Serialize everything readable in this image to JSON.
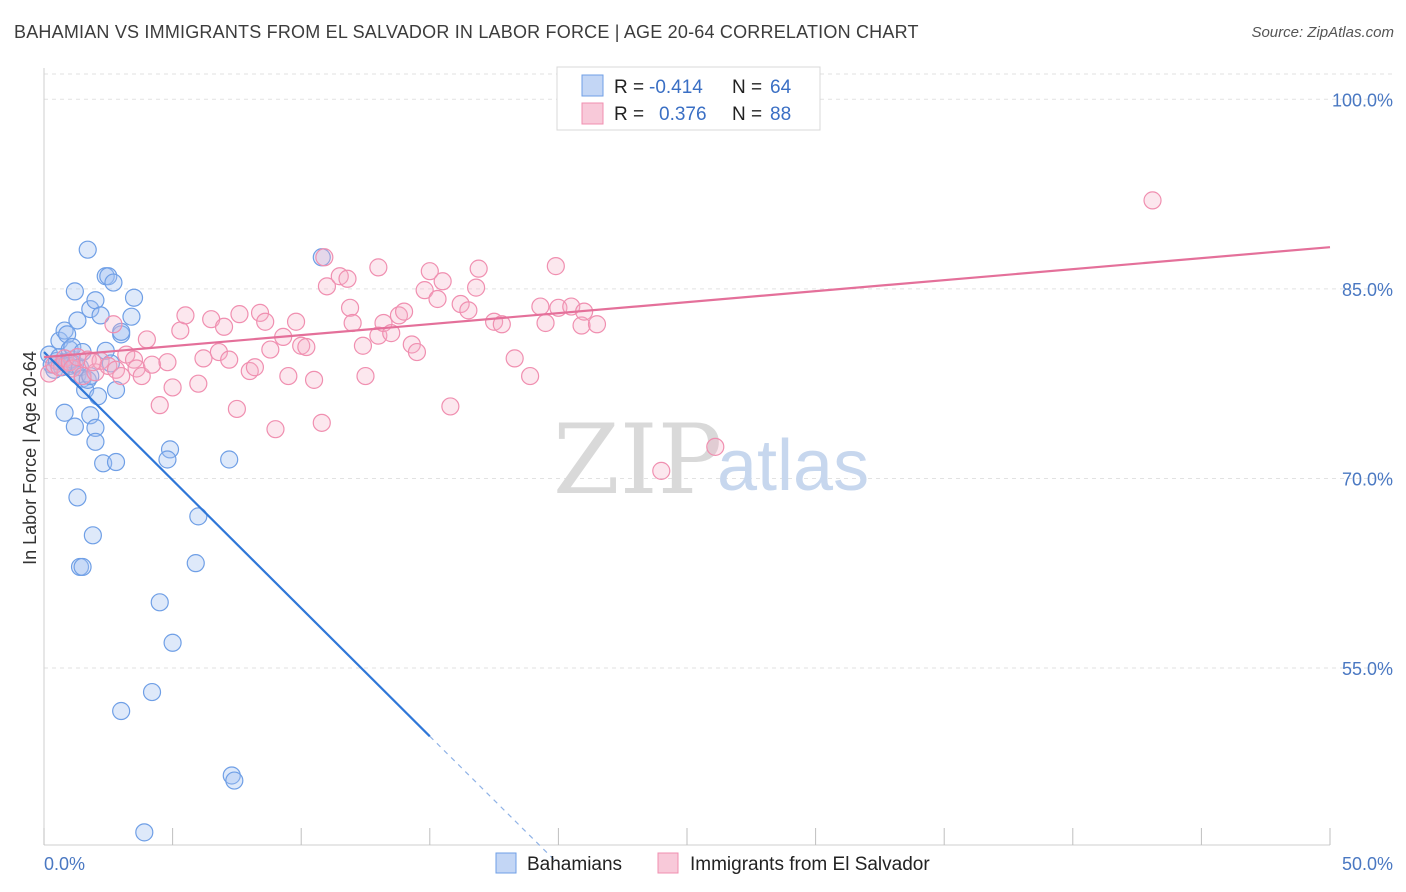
{
  "title": "BAHAMIAN VS IMMIGRANTS FROM EL SALVADOR IN LABOR FORCE | AGE 20-64 CORRELATION CHART",
  "source": "Source: ZipAtlas.com",
  "watermark": {
    "zip": "ZIP",
    "atlas": "atlas"
  },
  "legend": {
    "rows": [
      {
        "r_label": "R =",
        "r_value": "-0.414",
        "n_label": "N =",
        "n_value": "64",
        "color": "#6f9fe6"
      },
      {
        "r_label": "R =",
        "r_value": "0.376",
        "n_label": "N =",
        "n_value": "88",
        "color": "#f08fb0"
      }
    ]
  },
  "bottom_legend": [
    "Bahamians",
    "Immigrants from El Salvador"
  ],
  "chart_data": {
    "type": "scatter",
    "title": "BAHAMIAN VS IMMIGRANTS FROM EL SALVADOR IN LABOR FORCE | AGE 20-64 CORRELATION CHART",
    "xlabel": "",
    "ylabel": "In Labor Force | Age 20-64",
    "xlim": [
      0,
      50
    ],
    "ylim": [
      41,
      102
    ],
    "x_tick_labels": [
      "0.0%",
      "50.0%"
    ],
    "y_ticks": [
      100,
      85,
      70,
      55
    ],
    "y_tick_labels": [
      "100.0%",
      "85.0%",
      "70.0%",
      "55.0%"
    ],
    "grid": "horizontal dashed",
    "legend_placement": "top-center",
    "series": [
      {
        "name": "Bahamians",
        "color": "#6f9fe6",
        "points": [
          [
            0.2,
            79.8
          ],
          [
            0.3,
            79.0
          ],
          [
            0.4,
            78.6
          ],
          [
            0.5,
            79.3
          ],
          [
            0.6,
            79.6
          ],
          [
            0.7,
            78.8
          ],
          [
            0.8,
            79.2
          ],
          [
            0.9,
            79.1
          ],
          [
            1.0,
            78.9
          ],
          [
            1.1,
            79.4
          ],
          [
            0.6,
            80.9
          ],
          [
            0.8,
            81.7
          ],
          [
            0.9,
            81.4
          ],
          [
            1.0,
            80.2
          ],
          [
            1.1,
            80.4
          ],
          [
            1.2,
            79.0
          ],
          [
            1.3,
            78.2
          ],
          [
            1.4,
            78.8
          ],
          [
            1.5,
            77.9
          ],
          [
            1.6,
            77.0
          ],
          [
            1.7,
            77.8
          ],
          [
            1.8,
            78.1
          ],
          [
            1.2,
            84.8
          ],
          [
            1.3,
            82.5
          ],
          [
            1.5,
            80.0
          ],
          [
            1.7,
            88.1
          ],
          [
            1.8,
            83.4
          ],
          [
            2.0,
            84.1
          ],
          [
            2.2,
            82.9
          ],
          [
            2.4,
            86.0
          ],
          [
            2.5,
            86.0
          ],
          [
            2.7,
            85.5
          ],
          [
            2.4,
            80.1
          ],
          [
            2.6,
            79.1
          ],
          [
            2.1,
            76.5
          ],
          [
            3.0,
            81.4
          ],
          [
            3.4,
            82.8
          ],
          [
            3.5,
            84.3
          ],
          [
            3.0,
            81.6
          ],
          [
            2.8,
            77.0
          ],
          [
            0.8,
            75.2
          ],
          [
            1.2,
            74.1
          ],
          [
            1.8,
            75.0
          ],
          [
            2.0,
            74.0
          ],
          [
            2.0,
            72.9
          ],
          [
            2.3,
            71.2
          ],
          [
            2.8,
            71.3
          ],
          [
            4.9,
            72.3
          ],
          [
            4.8,
            71.5
          ],
          [
            7.2,
            71.5
          ],
          [
            1.3,
            68.5
          ],
          [
            1.9,
            65.5
          ],
          [
            1.4,
            63.0
          ],
          [
            1.5,
            63.0
          ],
          [
            6.0,
            67.0
          ],
          [
            5.9,
            63.3
          ],
          [
            4.5,
            60.2
          ],
          [
            5.0,
            57.0
          ],
          [
            4.2,
            53.1
          ],
          [
            3.0,
            51.6
          ],
          [
            7.3,
            46.5
          ],
          [
            7.4,
            46.1
          ],
          [
            3.9,
            42.0
          ],
          [
            10.8,
            87.5
          ]
        ],
        "trend": {
          "x": [
            0,
            15
          ],
          "y": [
            80.0,
            49.6
          ],
          "dashed_extension": {
            "x": [
              15,
              20
            ],
            "y": [
              49.6,
              39.5
            ]
          }
        }
      },
      {
        "name": "Immigrants from El Salvador",
        "color": "#f08fb0",
        "points": [
          [
            0.2,
            78.3
          ],
          [
            0.4,
            79.0
          ],
          [
            0.6,
            78.8
          ],
          [
            0.8,
            79.5
          ],
          [
            1.0,
            79.2
          ],
          [
            1.1,
            78.7
          ],
          [
            1.3,
            79.6
          ],
          [
            1.5,
            78.1
          ],
          [
            1.7,
            79.4
          ],
          [
            2.0,
            78.4
          ],
          [
            2.2,
            79.3
          ],
          [
            2.5,
            78.9
          ],
          [
            2.7,
            82.2
          ],
          [
            2.8,
            78.6
          ],
          [
            3.0,
            78.1
          ],
          [
            3.2,
            79.8
          ],
          [
            3.5,
            79.4
          ],
          [
            3.6,
            78.7
          ],
          [
            3.8,
            78.1
          ],
          [
            4.0,
            81.0
          ],
          [
            4.2,
            79.0
          ],
          [
            4.5,
            75.8
          ],
          [
            4.8,
            79.2
          ],
          [
            5.0,
            77.2
          ],
          [
            5.3,
            81.7
          ],
          [
            5.5,
            82.9
          ],
          [
            6.0,
            77.5
          ],
          [
            6.2,
            79.5
          ],
          [
            6.5,
            82.6
          ],
          [
            6.8,
            80.0
          ],
          [
            7.0,
            82.0
          ],
          [
            7.2,
            79.4
          ],
          [
            7.5,
            75.5
          ],
          [
            7.6,
            83.0
          ],
          [
            8.0,
            78.5
          ],
          [
            8.2,
            78.8
          ],
          [
            8.4,
            83.1
          ],
          [
            8.6,
            82.4
          ],
          [
            8.8,
            80.2
          ],
          [
            9.0,
            73.9
          ],
          [
            9.3,
            81.2
          ],
          [
            9.5,
            78.1
          ],
          [
            9.8,
            82.4
          ],
          [
            10.0,
            80.5
          ],
          [
            10.2,
            80.4
          ],
          [
            10.5,
            77.8
          ],
          [
            10.8,
            74.4
          ],
          [
            10.9,
            87.5
          ],
          [
            11.0,
            85.2
          ],
          [
            11.5,
            86.0
          ],
          [
            11.8,
            85.8
          ],
          [
            11.9,
            83.5
          ],
          [
            12.0,
            82.3
          ],
          [
            12.4,
            80.5
          ],
          [
            12.5,
            78.1
          ],
          [
            13.0,
            81.3
          ],
          [
            13.2,
            82.3
          ],
          [
            13.5,
            81.5
          ],
          [
            13.8,
            82.9
          ],
          [
            14.0,
            83.2
          ],
          [
            14.3,
            80.6
          ],
          [
            14.5,
            80.0
          ],
          [
            14.8,
            84.9
          ],
          [
            15.0,
            86.4
          ],
          [
            15.3,
            84.2
          ],
          [
            15.5,
            85.6
          ],
          [
            15.8,
            75.7
          ],
          [
            16.2,
            83.8
          ],
          [
            16.5,
            83.3
          ],
          [
            16.8,
            85.1
          ],
          [
            16.9,
            86.6
          ],
          [
            17.5,
            82.4
          ],
          [
            17.8,
            82.2
          ],
          [
            18.3,
            79.5
          ],
          [
            18.9,
            78.1
          ],
          [
            19.3,
            83.6
          ],
          [
            19.5,
            82.3
          ],
          [
            19.9,
            86.8
          ],
          [
            20.0,
            83.5
          ],
          [
            20.5,
            83.6
          ],
          [
            20.9,
            82.1
          ],
          [
            21.0,
            83.2
          ],
          [
            21.5,
            82.2
          ],
          [
            24.0,
            70.6
          ],
          [
            26.1,
            72.5
          ],
          [
            43.1,
            92.0
          ],
          [
            1.9,
            79.2
          ],
          [
            13.0,
            86.7
          ]
        ],
        "trend": {
          "x": [
            0,
            50
          ],
          "y": [
            79.6,
            88.3
          ]
        }
      }
    ]
  }
}
